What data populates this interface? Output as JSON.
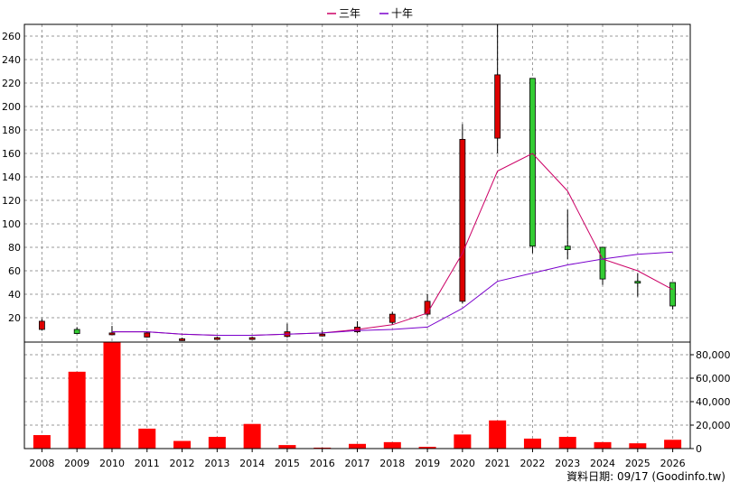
{
  "chart_data": {
    "type": "candlestick+line+bar",
    "legend": [
      {
        "name": "三年",
        "color": "#cc0066"
      },
      {
        "name": "十年",
        "color": "#7a00cc"
      }
    ],
    "x": [
      "2008",
      "2009",
      "2010",
      "2011",
      "2012",
      "2013",
      "2014",
      "2015",
      "2016",
      "2017",
      "2018",
      "2019",
      "2020",
      "2021",
      "2022",
      "2023",
      "2024",
      "2025",
      "2026"
    ],
    "price_axis": {
      "ticks": [
        20,
        40,
        60,
        80,
        100,
        120,
        140,
        160,
        180,
        200,
        220,
        240,
        260
      ],
      "range": [
        0,
        270
      ]
    },
    "volume_axis": {
      "ticks": [
        "0",
        "20,000",
        "40,000",
        "60,000",
        "80,000"
      ],
      "range": [
        0,
        90000
      ]
    },
    "candles": [
      {
        "o": 10,
        "c": 17,
        "h": 19,
        "l": 9
      },
      {
        "o": 10,
        "c": 6.5,
        "h": 12,
        "l": 6
      },
      {
        "o": 7,
        "c": 7,
        "h": 13,
        "l": 6
      },
      {
        "o": 3.5,
        "c": 7,
        "h": 8,
        "l": 3
      },
      {
        "o": 2,
        "c": 2,
        "h": 3,
        "l": 1.5
      },
      {
        "o": 3,
        "c": 3,
        "h": 4,
        "l": 2
      },
      {
        "o": 3,
        "c": 3,
        "h": 4,
        "l": 2
      },
      {
        "o": 4,
        "c": 8,
        "h": 15,
        "l": 3
      },
      {
        "o": 5,
        "c": 6,
        "h": 9,
        "l": 4
      },
      {
        "o": 8,
        "c": 12,
        "h": 17,
        "l": 7
      },
      {
        "o": 16,
        "c": 23,
        "h": 25,
        "l": 14
      },
      {
        "o": 23,
        "c": 34,
        "h": 40,
        "l": 21
      },
      {
        "o": 34,
        "c": 172,
        "h": 185,
        "l": 32
      },
      {
        "o": 173,
        "c": 227,
        "h": 270,
        "l": 160
      },
      {
        "o": 224,
        "c": 81,
        "h": 224,
        "l": 75
      },
      {
        "o": 81,
        "c": 78,
        "h": 112,
        "l": 70
      },
      {
        "o": 80,
        "c": 53,
        "h": 80,
        "l": 48
      },
      {
        "o": 51,
        "c": 50,
        "h": 58,
        "l": 38
      },
      {
        "o": 50,
        "c": 30,
        "h": 50,
        "l": 27
      }
    ],
    "series": [
      {
        "name": "三年",
        "values": [
          null,
          null,
          8,
          8,
          6,
          5,
          5,
          6,
          7,
          10,
          14,
          24,
          75,
          145,
          160,
          128,
          70,
          60,
          44
        ]
      },
      {
        "name": "十年",
        "values": [
          null,
          null,
          8,
          8,
          6,
          5,
          5,
          6,
          7,
          9,
          10,
          12,
          28,
          51,
          58,
          65,
          70,
          74,
          76
        ]
      }
    ],
    "volume": [
      11500,
      65500,
      91000,
      17000,
      6500,
      10000,
      21000,
      3000,
      800,
      4000,
      5500,
      1500,
      12000,
      24000,
      8500,
      10000,
      5500,
      4500,
      7500
    ],
    "footer": "資料日期: 09/17  (Goodinfo.tw)"
  }
}
